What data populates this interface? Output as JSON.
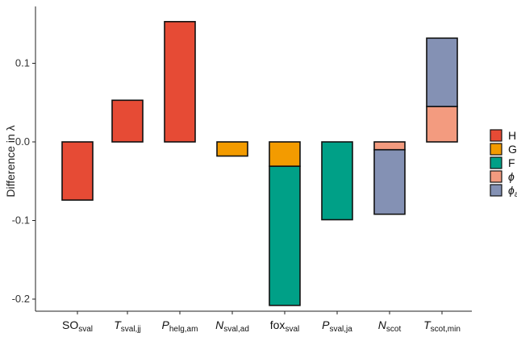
{
  "chart_data": {
    "type": "bar",
    "stacked": true,
    "ylabel": "Difference in λ",
    "ylim": [
      -0.215,
      0.17
    ],
    "yticks": [
      {
        "value": 0.1,
        "label": "0.1"
      },
      {
        "value": 0.0,
        "label": "0.0"
      },
      {
        "value": -0.1,
        "label": "-0.1"
      },
      {
        "value": -0.2,
        "label": "-0.2"
      }
    ],
    "grid": false,
    "legend_placement": "right",
    "categories": [
      {
        "main": "SO",
        "sub": "sval",
        "italic": false
      },
      {
        "main": "T",
        "sub": "sval,jj",
        "italic": true
      },
      {
        "main": "P",
        "sub": "helg,am",
        "italic": true
      },
      {
        "main": "N",
        "sub": "sval,ad",
        "italic": true
      },
      {
        "main": "fox",
        "sub": "sval",
        "italic": false
      },
      {
        "main": "P",
        "sub": "sval,ja",
        "italic": true
      },
      {
        "main": "N",
        "sub": "scot",
        "italic": true
      },
      {
        "main": "T",
        "sub": "scot,min",
        "italic": true
      }
    ],
    "series": [
      {
        "key": "H",
        "color": "#E64B35",
        "values": [
          -0.074,
          0.053,
          0.153,
          0,
          0,
          0,
          0,
          0
        ]
      },
      {
        "key": "G",
        "color": "#F39B00",
        "values": [
          0,
          0,
          0,
          -0.018,
          -0.031,
          0,
          0,
          0
        ]
      },
      {
        "key": "F",
        "color": "#00A087",
        "values": [
          0,
          0,
          0,
          0,
          -0.177,
          -0.099,
          0,
          0
        ]
      },
      {
        "key": "phi_a",
        "color": "#F39B7F",
        "values": [
          0,
          0,
          0,
          0,
          0,
          0,
          -0.01,
          0.045
        ]
      },
      {
        "key": "phi_ad",
        "color": "#8491B4",
        "values": [
          0,
          0,
          0,
          0,
          0,
          0,
          -0.082,
          0.087
        ]
      }
    ],
    "legend": [
      {
        "key": "H",
        "label": "H",
        "italic": false,
        "sub": ""
      },
      {
        "key": "G",
        "label": "G",
        "italic": false,
        "sub": ""
      },
      {
        "key": "F",
        "label": "F",
        "italic": false,
        "sub": ""
      },
      {
        "key": "phi_a",
        "label": "ϕ",
        "italic": true,
        "sub": ""
      },
      {
        "key": "phi_ad",
        "label": "ϕ",
        "italic": true,
        "sub": "ad"
      }
    ]
  }
}
